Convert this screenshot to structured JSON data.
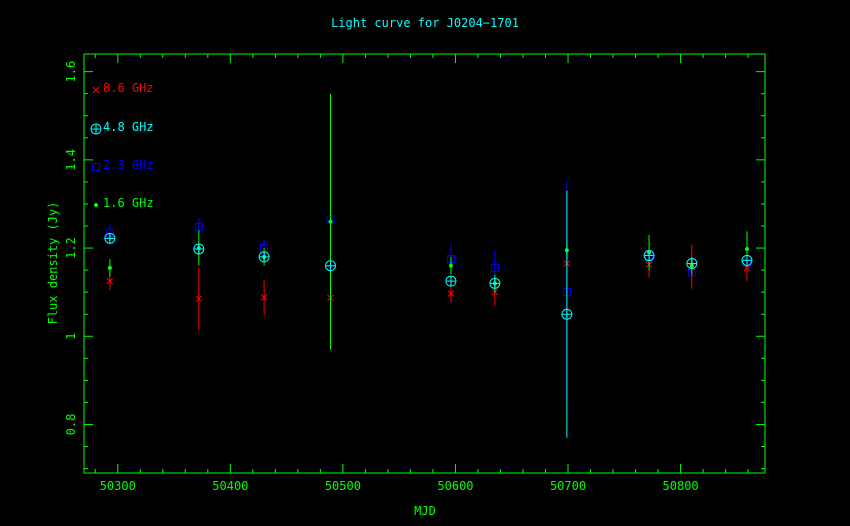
{
  "chart_data": {
    "type": "scatter",
    "title": "Light curve for J0204−1701",
    "xlabel": "MJD",
    "ylabel": "Flux density (Jy)",
    "xlim": [
      50270,
      50875
    ],
    "ylim": [
      0.69,
      1.64
    ],
    "xticks": [
      50300,
      50400,
      50500,
      50600,
      50700,
      50800
    ],
    "yticks": [
      0.8,
      1,
      1.2,
      1.4,
      1.6
    ],
    "ytick_labels": [
      "0.8",
      "1",
      "1.2",
      "1.4",
      "1.6"
    ],
    "legend_position": "top-left",
    "colors": {
      "axes": "#00ff00",
      "title": "#00ffff",
      "8.6 GHz": "#ff0000",
      "4.8 GHz": "#00ffff",
      "2.3 GHz": "#0000ff",
      "1.6 GHz": "#00ff00"
    },
    "series": [
      {
        "name": "8.6 GHz",
        "marker": "cross",
        "points": [
          {
            "x": 50293,
            "y": 1.125,
            "err": 0.02
          },
          {
            "x": 50372,
            "y": 1.085,
            "err": 0.07
          },
          {
            "x": 50430,
            "y": 1.088,
            "err": 0.04
          },
          {
            "x": 50489,
            "y": 1.087,
            "err": 0.02
          },
          {
            "x": 50596,
            "y": 1.097,
            "err": 0.02
          },
          {
            "x": 50635,
            "y": 1.1,
            "err": 0.03
          },
          {
            "x": 50699,
            "y": 1.165,
            "err": 0.03
          },
          {
            "x": 50772,
            "y": 1.163,
            "err": 0.03
          },
          {
            "x": 50810,
            "y": 1.158,
            "err": 0.05
          },
          {
            "x": 50859,
            "y": 1.155,
            "err": 0.03
          }
        ]
      },
      {
        "name": "4.8 GHz",
        "marker": "circle-plus",
        "points": [
          {
            "x": 50293,
            "y": 1.222,
            "err": 0.01
          },
          {
            "x": 50372,
            "y": 1.198,
            "err": 0.01
          },
          {
            "x": 50430,
            "y": 1.18,
            "err": 0.01
          },
          {
            "x": 50489,
            "y": 1.16,
            "err": 0.01
          },
          {
            "x": 50596,
            "y": 1.125,
            "err": 0.01
          },
          {
            "x": 50635,
            "y": 1.12,
            "err": 0.01
          },
          {
            "x": 50699,
            "y": 1.05,
            "err": 0.28
          },
          {
            "x": 50772,
            "y": 1.183,
            "err": 0.01
          },
          {
            "x": 50810,
            "y": 1.165,
            "err": 0.01
          },
          {
            "x": 50859,
            "y": 1.172,
            "err": 0.01
          }
        ]
      },
      {
        "name": "2.3 GHz",
        "marker": "square",
        "points": [
          {
            "x": 50293,
            "y": 1.235,
            "err": 0.02
          },
          {
            "x": 50372,
            "y": 1.248,
            "err": 0.02
          },
          {
            "x": 50430,
            "y": 1.2,
            "err": 0.02
          },
          {
            "x": 50489,
            "y": 1.265,
            "err": 0.04
          },
          {
            "x": 50596,
            "y": 1.175,
            "err": 0.03
          },
          {
            "x": 50635,
            "y": 1.155,
            "err": 0.04
          },
          {
            "x": 50699,
            "y": 1.1,
            "err": 0.25
          },
          {
            "x": 50772,
            "y": 1.18,
            "err": 0.02
          },
          {
            "x": 50810,
            "y": 1.145,
            "err": 0.02
          },
          {
            "x": 50859,
            "y": 1.165,
            "err": 0.02
          }
        ]
      },
      {
        "name": "1.6 GHz",
        "marker": "dot",
        "points": [
          {
            "x": 50293,
            "y": 1.155,
            "err": 0.02
          },
          {
            "x": 50372,
            "y": 1.2,
            "err": 0.04
          },
          {
            "x": 50430,
            "y": 1.18,
            "err": 0.02
          },
          {
            "x": 50489,
            "y": 1.26,
            "err": 0.29
          },
          {
            "x": 50596,
            "y": 1.16,
            "err": 0.02
          },
          {
            "x": 50635,
            "y": 1.12,
            "err": 0.02
          },
          {
            "x": 50699,
            "y": 1.195,
            "err": 0.02
          },
          {
            "x": 50772,
            "y": 1.19,
            "err": 0.04
          },
          {
            "x": 50810,
            "y": 1.16,
            "err": 0.02
          },
          {
            "x": 50859,
            "y": 1.198,
            "err": 0.04
          }
        ]
      }
    ]
  }
}
